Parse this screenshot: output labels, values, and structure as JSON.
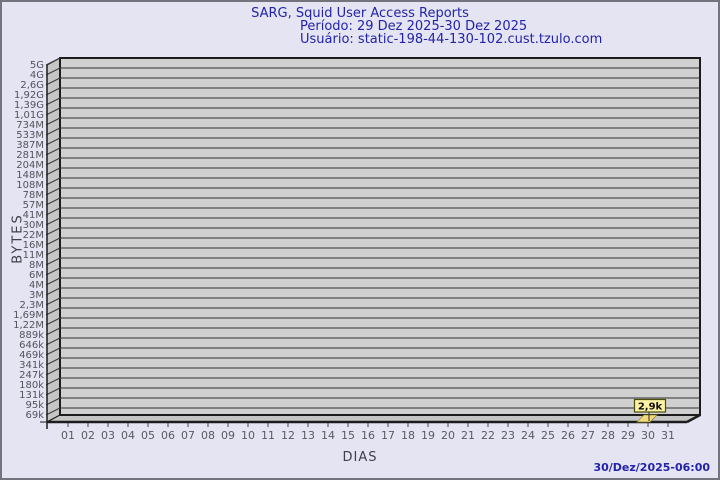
{
  "page": {
    "background": "#e4e4f3",
    "border_color": "#73737e"
  },
  "header": {
    "title": "SARG, Squid User Access Reports",
    "period": "Período: 29 Dez 2025-30 Dez 2025",
    "user": "Usuário: static-198-44-130-102.cust.tzulo.com"
  },
  "footer": {
    "timestamp": "30/Dez/2025-06:00"
  },
  "chart_data": {
    "type": "bar",
    "title": "SARG, Squid User Access Reports",
    "subtitle": "Período: 29 Dez 2025-30 Dez 2025",
    "user_line": "Usuário: static-198-44-130-102.cust.tzulo.com",
    "xlabel": "DIAS",
    "ylabel": "BYTES",
    "y_scale": "log",
    "y_ticks": [
      "5G",
      "4G",
      "2,6G",
      "1,92G",
      "1,39G",
      "1,01G",
      "734M",
      "533M",
      "387M",
      "281M",
      "204M",
      "148M",
      "108M",
      "78M",
      "57M",
      "41M",
      "30M",
      "22M",
      "16M",
      "11M",
      "8M",
      "6M",
      "4M",
      "3M",
      "2,3M",
      "1,69M",
      "1,22M",
      "889k",
      "646k",
      "469k",
      "341k",
      "247k",
      "180k",
      "131k",
      "95k",
      "69k"
    ],
    "x_ticks": [
      "01",
      "02",
      "03",
      "04",
      "05",
      "06",
      "07",
      "08",
      "09",
      "10",
      "11",
      "12",
      "13",
      "14",
      "15",
      "16",
      "17",
      "18",
      "19",
      "20",
      "21",
      "22",
      "23",
      "24",
      "25",
      "26",
      "27",
      "28",
      "29",
      "30",
      "31"
    ],
    "values": [
      null,
      null,
      null,
      null,
      null,
      null,
      null,
      null,
      null,
      null,
      null,
      null,
      null,
      null,
      null,
      null,
      null,
      null,
      null,
      null,
      null,
      null,
      null,
      null,
      null,
      null,
      null,
      null,
      null,
      2900,
      null
    ],
    "bars": [
      {
        "day": "30",
        "label": "2,9k",
        "bytes": 2900
      }
    ],
    "legend": null,
    "grid": true,
    "colors": {
      "bar": "#f2da7c",
      "bar_edge": "#8f842f",
      "annotation_bg": "#fdf2a3",
      "annotation_border": "#4d4d0a",
      "plot_bg": "#d0d0d0",
      "wall_bg": "#c5c5c5",
      "grid_line": "#2f2f2f",
      "frame_line": "#1c1c1c",
      "title_text": "#2323aa",
      "tick_text": "#53535b",
      "axis_text": "#40404a"
    }
  }
}
